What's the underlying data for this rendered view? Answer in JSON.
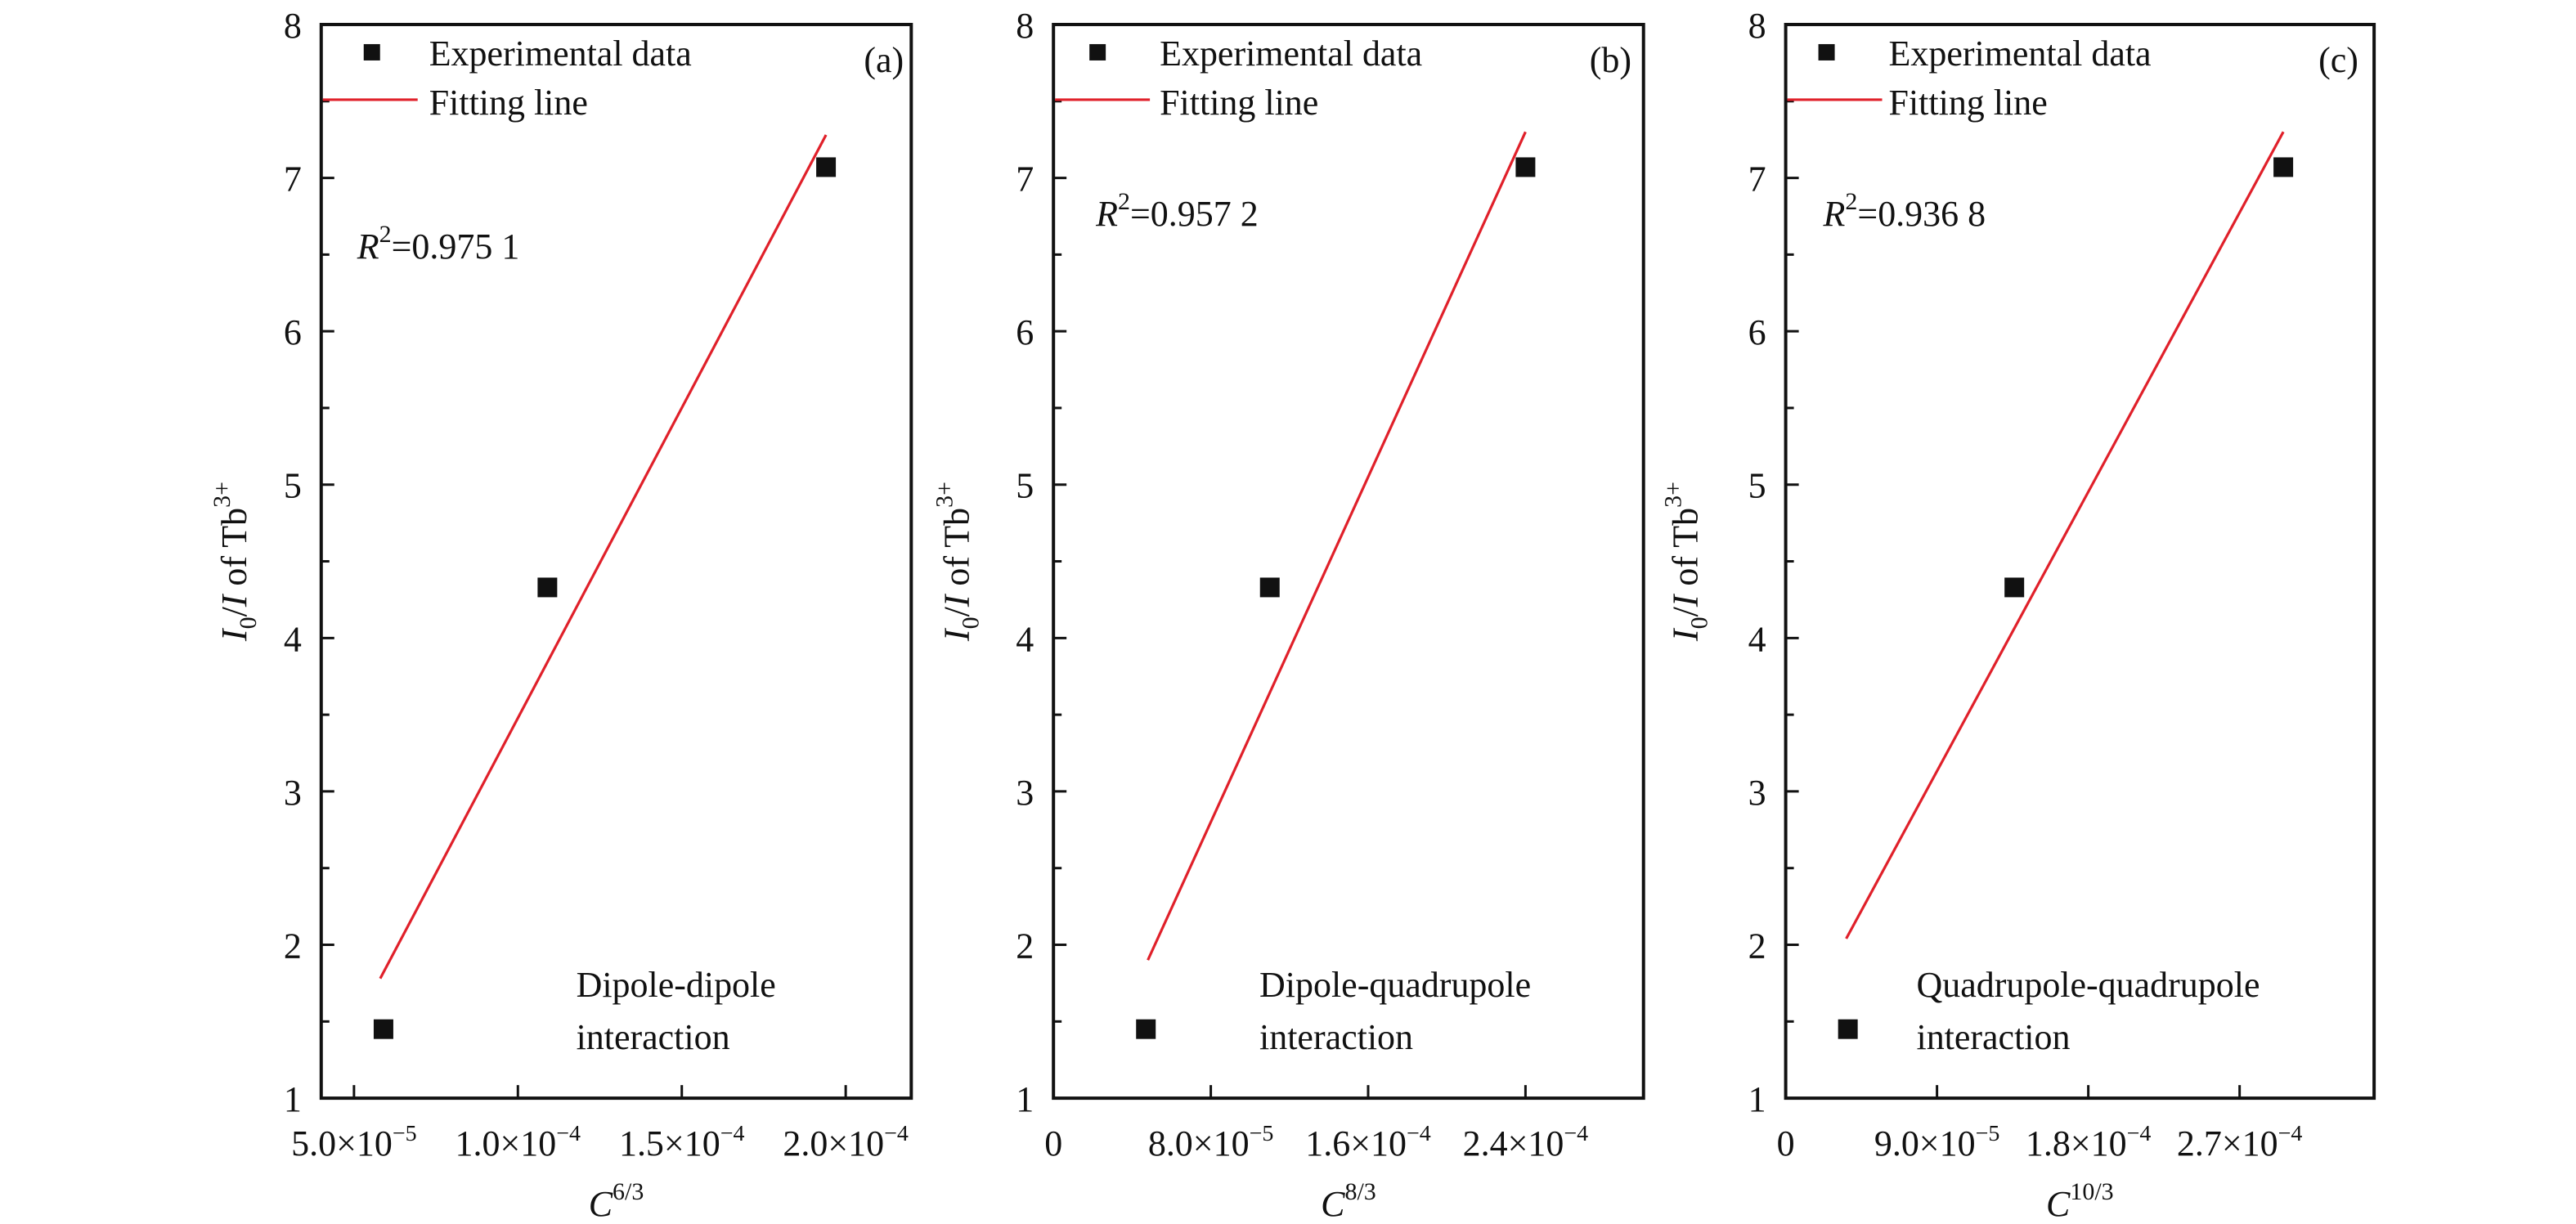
{
  "chart_data": [
    {
      "type": "scatter",
      "panel_label": "(a)",
      "xlabel": {
        "base": "C",
        "sup": "6/3"
      },
      "ylabel": {
        "i0": "I",
        "sub": "0",
        "mid": "/",
        "i": "I",
        "rest": " of Tb",
        "sup": "3+"
      },
      "xlim": [
        4e-05,
        0.00022
      ],
      "ylim": [
        1,
        8
      ],
      "x_ticks": [
        {
          "value": 5e-05,
          "mant": "5.0×10",
          "exp": "−5"
        },
        {
          "value": 0.0001,
          "mant": "1.0×10",
          "exp": "−4"
        },
        {
          "value": 0.00015,
          "mant": "1.5×10",
          "exp": "−4"
        },
        {
          "value": 0.0002,
          "mant": "2.0×10",
          "exp": "−4"
        }
      ],
      "y_ticks": [
        1,
        2,
        3,
        4,
        5,
        6,
        7,
        8
      ],
      "legend": {
        "marker_label": "Experimental data",
        "line_label": "Fitting line",
        "placement": "top-left"
      },
      "r2": {
        "prefix": "R",
        "sup": "2",
        "value": "=0.975 1"
      },
      "annotation": [
        "Dipole-dipole",
        "interaction"
      ],
      "series": [
        {
          "name": "Experimental data",
          "kind": "points",
          "x": [
            5.9e-05,
            0.000109,
            0.000194
          ],
          "y": [
            1.45,
            4.33,
            7.07
          ],
          "color": "#111111"
        },
        {
          "name": "Fitting line",
          "kind": "line",
          "x": [
            5.8e-05,
            0.000194
          ],
          "y": [
            1.78,
            7.28
          ],
          "color": "#e0202a"
        }
      ]
    },
    {
      "type": "scatter",
      "panel_label": "(b)",
      "xlabel": {
        "base": "C",
        "sup": "8/3"
      },
      "ylabel": {
        "i0": "I",
        "sub": "0",
        "mid": "/",
        "i": "I",
        "rest": " of Tb",
        "sup": "3+"
      },
      "xlim": [
        0,
        0.0003
      ],
      "ylim": [
        1,
        8
      ],
      "x_ticks": [
        {
          "value": 0,
          "mant": "0",
          "exp": ""
        },
        {
          "value": 8e-05,
          "mant": "8.0×10",
          "exp": "−5"
        },
        {
          "value": 0.00016,
          "mant": "1.6×10",
          "exp": "−4"
        },
        {
          "value": 0.00024,
          "mant": "2.4×10",
          "exp": "−4"
        }
      ],
      "y_ticks": [
        1,
        2,
        3,
        4,
        5,
        6,
        7,
        8
      ],
      "legend": {
        "marker_label": "Experimental data",
        "line_label": "Fitting line",
        "placement": "top-left"
      },
      "r2": {
        "prefix": "R",
        "sup": "2",
        "value": "=0.957 2"
      },
      "annotation": [
        "Dipole-quadrupole",
        "interaction"
      ],
      "series": [
        {
          "name": "Experimental data",
          "kind": "points",
          "x": [
            4.7e-05,
            0.00011,
            0.00024
          ],
          "y": [
            1.45,
            4.33,
            7.07
          ],
          "color": "#111111"
        },
        {
          "name": "Fitting line",
          "kind": "line",
          "x": [
            4.8e-05,
            0.00024
          ],
          "y": [
            1.9,
            7.3
          ],
          "color": "#e0202a"
        }
      ]
    },
    {
      "type": "scatter",
      "panel_label": "(c)",
      "xlabel": {
        "base": "C",
        "sup": "10/3"
      },
      "ylabel": {
        "i0": "I",
        "sub": "0",
        "mid": "/",
        "i": "I",
        "rest": " of Tb",
        "sup": "3+"
      },
      "xlim": [
        0,
        0.00035
      ],
      "ylim": [
        1,
        8
      ],
      "x_ticks": [
        {
          "value": 0,
          "mant": "0",
          "exp": ""
        },
        {
          "value": 9e-05,
          "mant": "9.0×10",
          "exp": "−5"
        },
        {
          "value": 0.00018,
          "mant": "1.8×10",
          "exp": "−4"
        },
        {
          "value": 0.00027,
          "mant": "2.7×10",
          "exp": "−4"
        }
      ],
      "y_ticks": [
        1,
        2,
        3,
        4,
        5,
        6,
        7,
        8
      ],
      "legend": {
        "marker_label": "Experimental data",
        "line_label": "Fitting line",
        "placement": "top-left"
      },
      "r2": {
        "prefix": "R",
        "sup": "2",
        "value": "=0.936 8"
      },
      "annotation": [
        "Quadrupole-quadrupole",
        "interaction"
      ],
      "series": [
        {
          "name": "Experimental data",
          "kind": "points",
          "x": [
            3.7e-05,
            0.000136,
            0.000296
          ],
          "y": [
            1.45,
            4.33,
            7.07
          ],
          "color": "#111111"
        },
        {
          "name": "Fitting line",
          "kind": "line",
          "x": [
            3.6e-05,
            0.000296
          ],
          "y": [
            2.04,
            7.3
          ],
          "color": "#e0202a"
        }
      ]
    }
  ]
}
